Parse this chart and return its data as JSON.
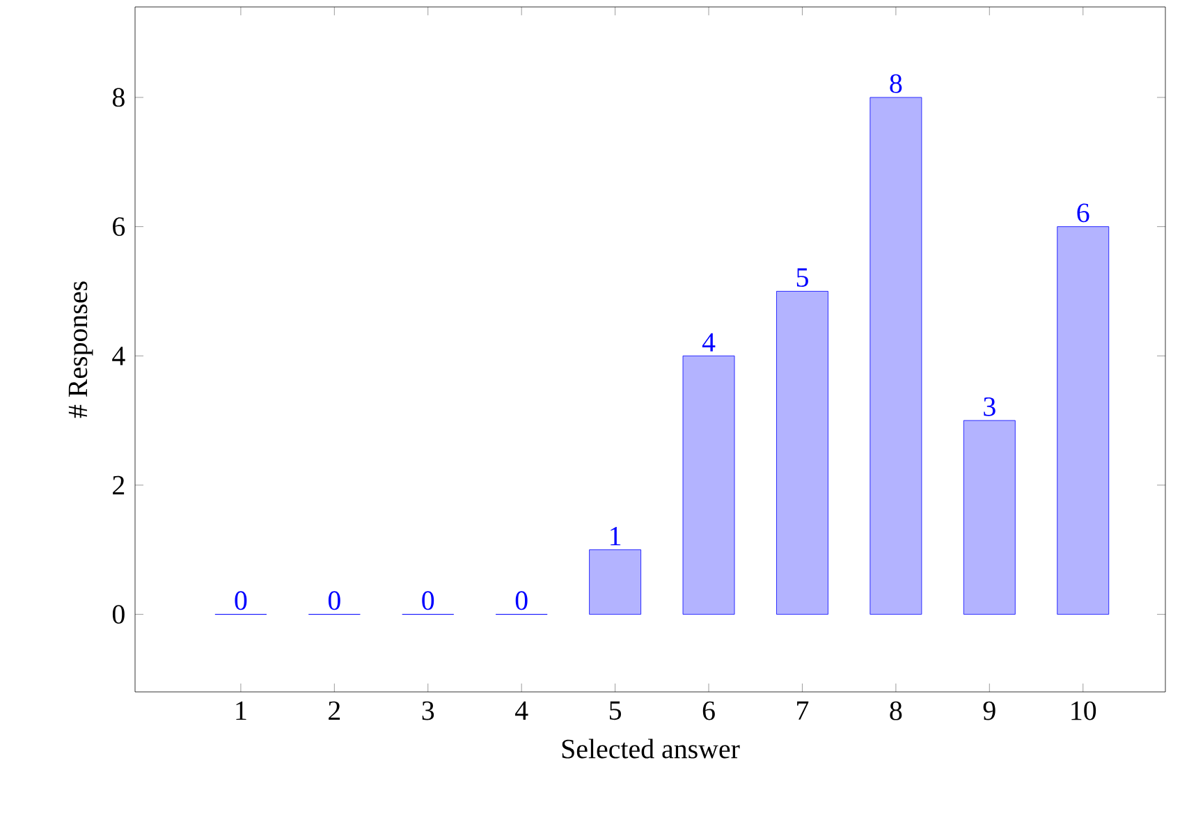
{
  "chart_data": {
    "type": "bar",
    "xlabel": "Selected answer",
    "ylabel": "# Responses",
    "categories": [
      "1",
      "2",
      "3",
      "4",
      "5",
      "6",
      "7",
      "8",
      "9",
      "10"
    ],
    "values": [
      0,
      0,
      0,
      0,
      1,
      4,
      5,
      8,
      3,
      6
    ],
    "colors": [
      "#0000ff",
      "#0000ff",
      "#0000ff",
      "#0000ff",
      "#b3b3ff",
      "#b3b3ff",
      "#b3b3ff",
      "#b3b3ff",
      "#b3b3ff",
      "#b3b3ff"
    ],
    "ylim": [
      -1.2,
      9.4
    ],
    "yticks": [
      0,
      2,
      4,
      6,
      8
    ],
    "data_labels": true
  }
}
